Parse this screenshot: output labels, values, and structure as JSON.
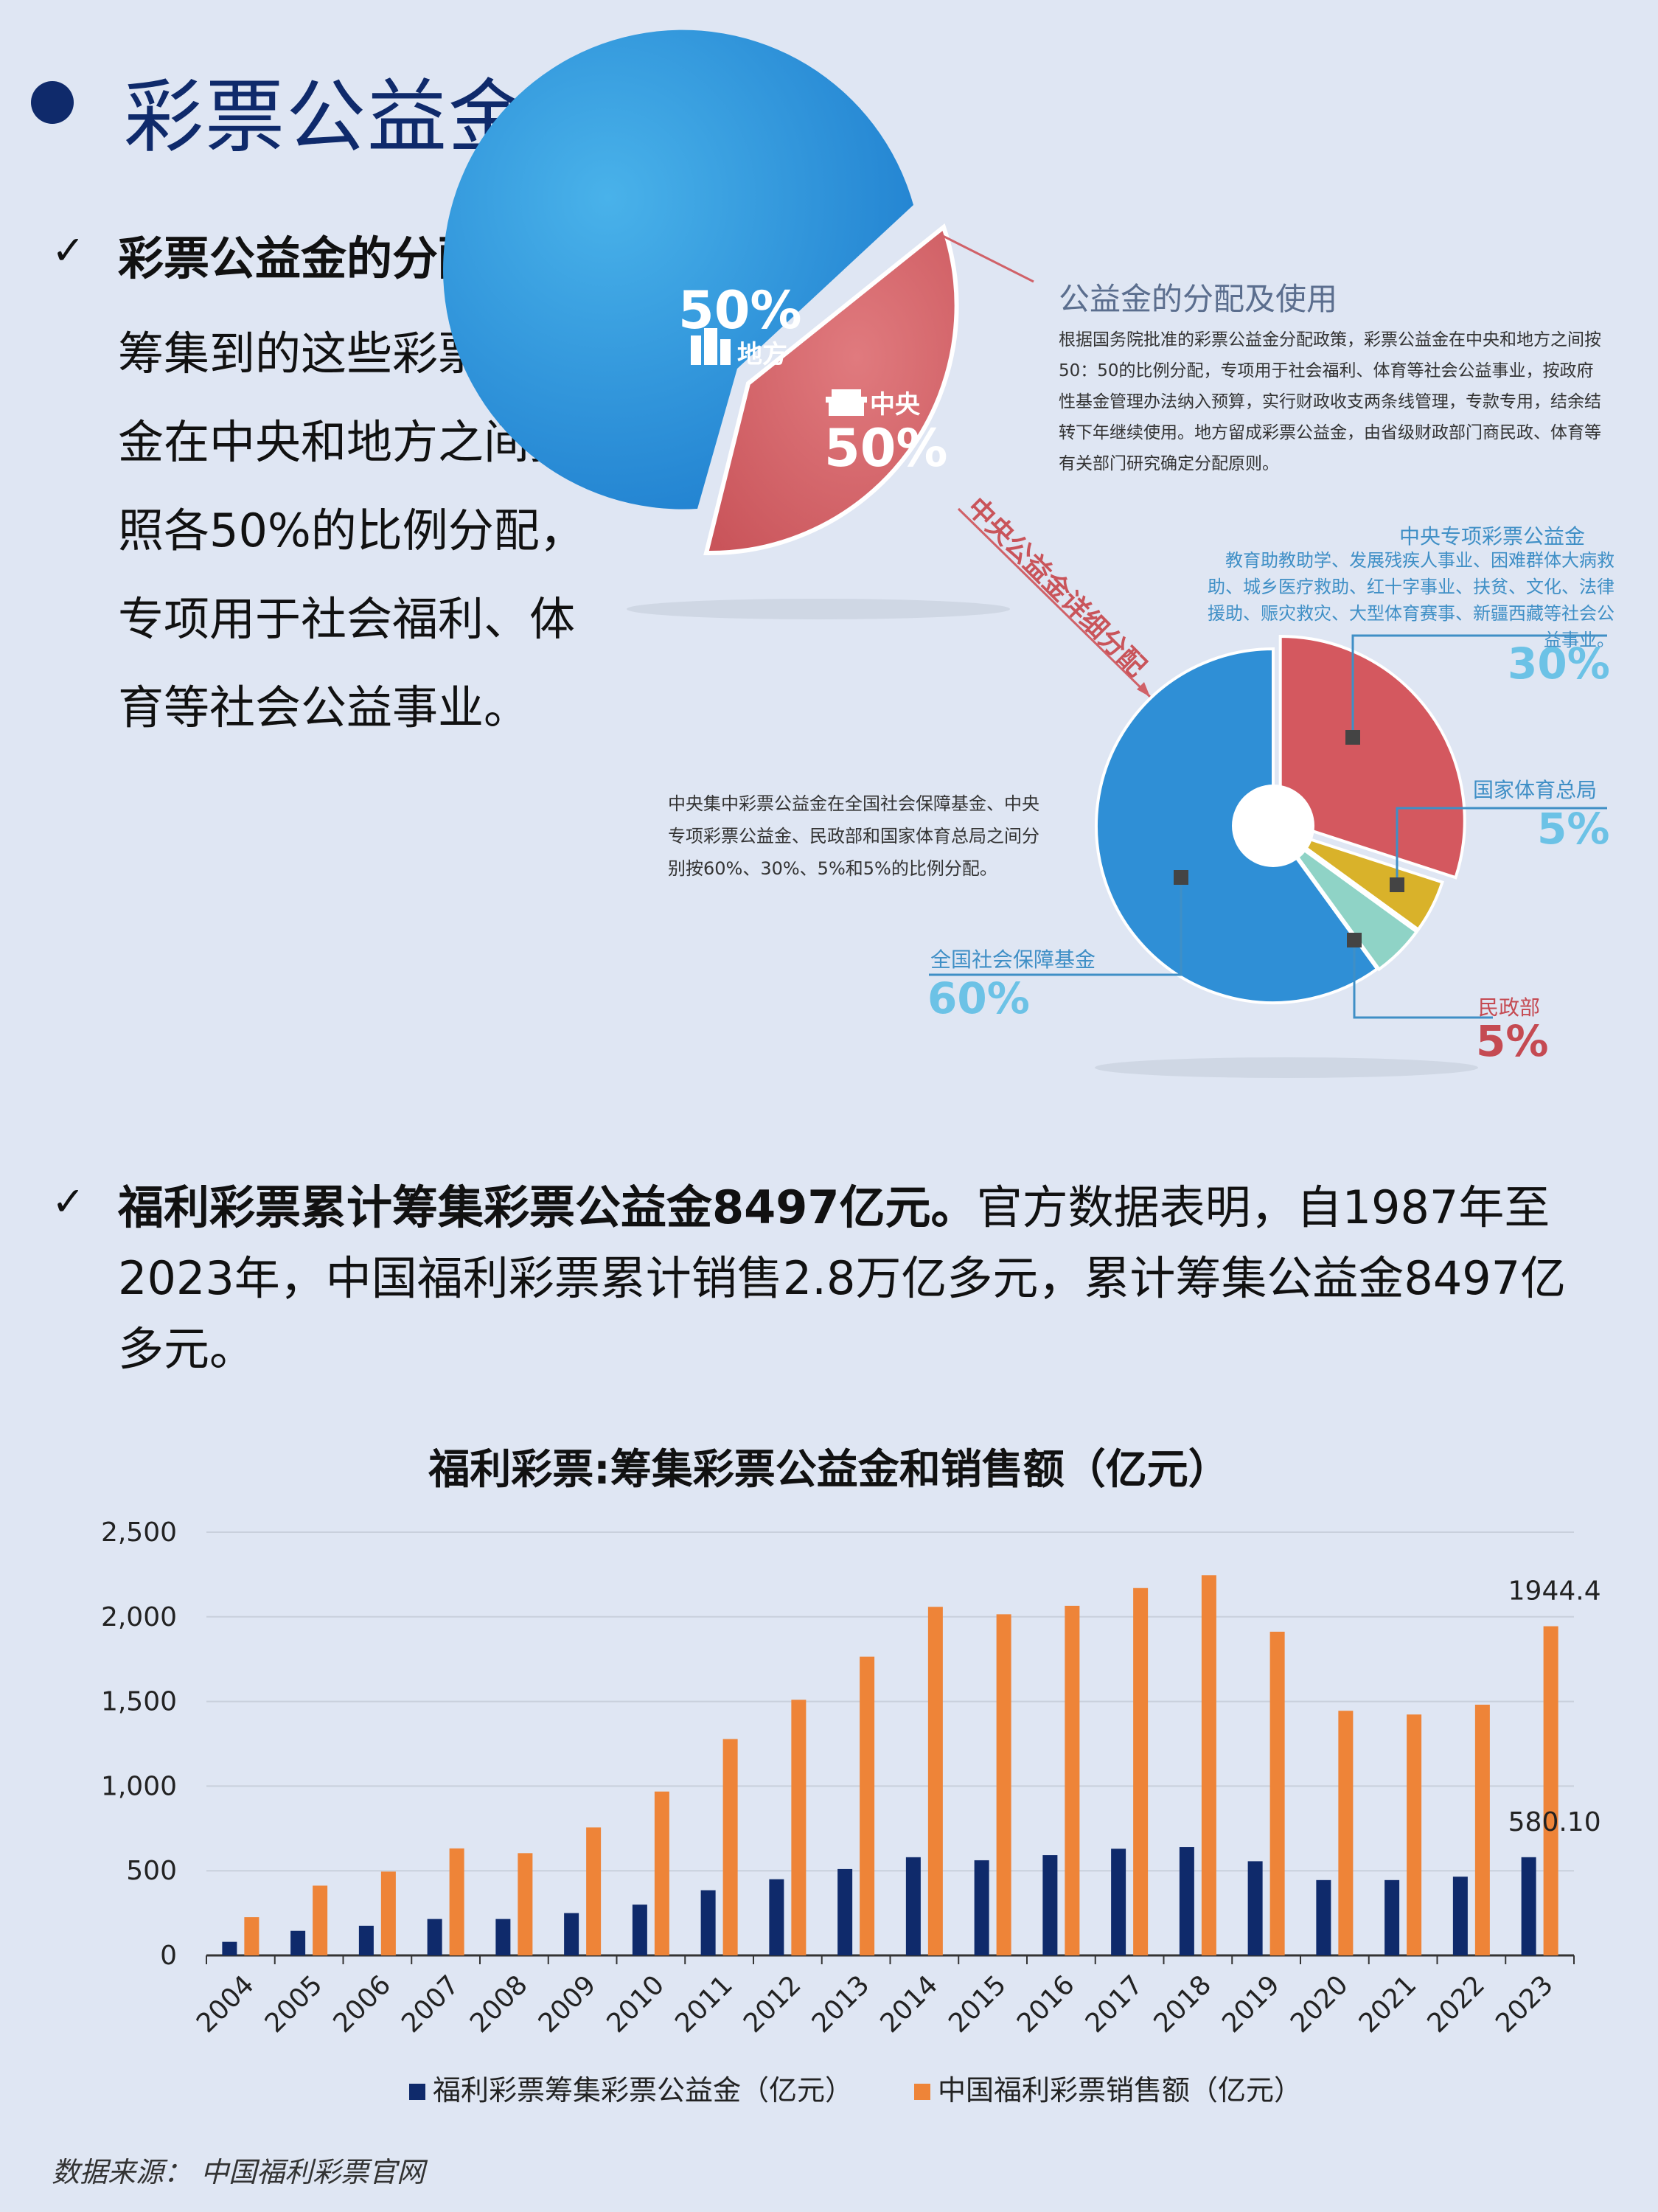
{
  "page": {
    "title": "彩票公益金的分配"
  },
  "bullet1": {
    "lead": "彩票公益金的分配：",
    "body": "筹集到的这些彩票公益金在中央和地方之间按照各50%的比例分配，专项用于社会福利、体育等社会公益事业。"
  },
  "infographic": {
    "top_pie": {
      "local_pct": "50%",
      "local_label": "地方",
      "central_label": "中央",
      "central_pct": "50%"
    },
    "arrow_label": "中央公益金详细分配",
    "info_title": "公益金的分配及使用",
    "info_body": "根据国务院批准的彩票公益金分配政策，彩票公益金在中央和地方之间按50：50的比例分配，专项用于社会福利、体育等社会公益事业，按政府性基金管理办法纳入预算，实行财政收支两条线管理，专款专用，结余结转下年继续使用。地方留成彩票公益金，由省级财政部门商民政、体育等有关部门研究确定分配原则。",
    "note": "中央集中彩票公益金在全国社会保障基金、中央专项彩票公益金、民政部和国家体育总局之间分别按60%、30%、5%和5%的比例分配。",
    "slices": [
      {
        "name": "中央专项彩票公益金",
        "pct": "30%",
        "value": 30,
        "color": "#d4585f",
        "desc": "教育助教助学、发展残疾人事业、困难群体大病救助、城乡医疗救助、红十字事业、扶贫、文化、法律援助、赈灾救灾、大型体育赛事、新疆西藏等社会公益事业。"
      },
      {
        "name": "国家体育总局",
        "pct": "5%",
        "value": 5,
        "color": "#d9b22a"
      },
      {
        "name": "民政部",
        "pct": "5%",
        "value": 5,
        "color": "#8fd3c6"
      },
      {
        "name": "全国社会保障基金",
        "pct": "60%",
        "value": 60,
        "color": "#2f8fd6"
      }
    ]
  },
  "bullet2": {
    "lead": "福利彩票累计筹集彩票公益金8497亿元。",
    "body": "官方数据表明，自1987年至2023年，中国福利彩票累计销售2.8万亿多元，累计筹集公益金8497亿多元。"
  },
  "chart_data": {
    "type": "bar",
    "title": "福利彩票:筹集彩票公益金和销售额（亿元）",
    "categories": [
      "2004",
      "2005",
      "2006",
      "2007",
      "2008",
      "2009",
      "2010",
      "2011",
      "2012",
      "2013",
      "2014",
      "2015",
      "2016",
      "2017",
      "2018",
      "2019",
      "2020",
      "2021",
      "2022",
      "2023"
    ],
    "series": [
      {
        "name": "福利彩票筹集彩票公益金（亿元）",
        "color": "#0f2a6b",
        "values": [
          80,
          145,
          175,
          215,
          215,
          250,
          300,
          385,
          450,
          510,
          580,
          562,
          592,
          630,
          640,
          556,
          445,
          445,
          465,
          580.1
        ]
      },
      {
        "name": "中国福利彩票销售额（亿元）",
        "color": "#ee8438",
        "values": [
          226,
          412,
          495,
          632,
          604,
          756,
          968,
          1278,
          1510,
          1765,
          2059,
          2015,
          2065,
          2170,
          2246,
          1912,
          1445,
          1423,
          1481,
          1944.4
        ]
      }
    ],
    "data_labels": [
      {
        "series": 1,
        "index": 19,
        "text": "1944.4"
      },
      {
        "series": 0,
        "index": 19,
        "text": "580.10"
      }
    ],
    "ylim": [
      0,
      2500
    ],
    "yticks": [
      "0",
      "500",
      "1,000",
      "1,500",
      "2,000",
      "2,500"
    ],
    "legend_position": "bottom",
    "grid": true
  },
  "source": "数据来源：  中国福利彩票官网"
}
